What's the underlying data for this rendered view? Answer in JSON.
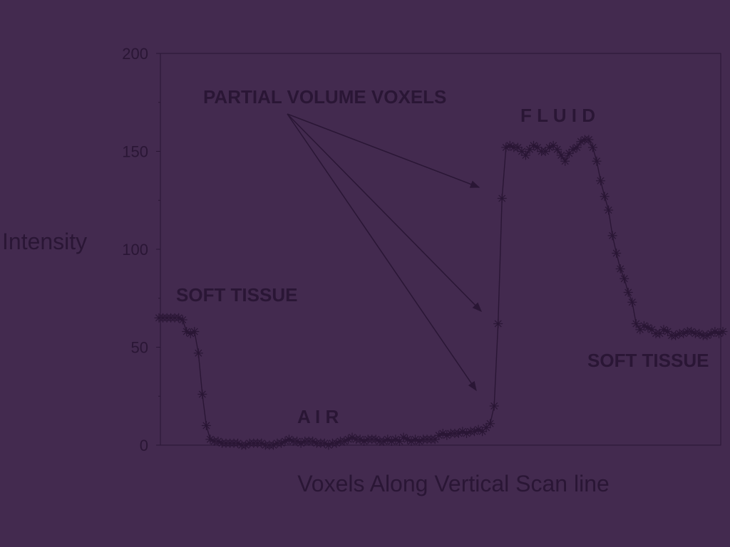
{
  "colors": {
    "background": "#432A4F",
    "ink": "#2A1635"
  },
  "chart_data": {
    "type": "line",
    "marker": "star",
    "xlabel": "Voxels Along Vertical Scan line",
    "ylabel": "Intensity",
    "ylim": [
      0,
      200
    ],
    "yticks": [
      "0",
      "50",
      "100",
      "150",
      "200"
    ],
    "grid": false,
    "legend": "none",
    "x_start": 0,
    "series": [
      {
        "values": [
          65,
          65,
          65,
          65,
          65,
          65,
          64,
          58,
          57,
          58,
          47,
          26,
          10,
          3,
          2,
          2,
          1,
          1,
          1,
          1,
          1,
          0,
          0,
          1,
          1,
          1,
          1,
          0,
          0,
          0,
          1,
          1,
          2,
          3,
          2,
          2,
          1,
          2,
          2,
          2,
          1,
          1,
          1,
          0,
          1,
          1,
          2,
          2,
          3,
          4,
          3,
          3,
          2,
          3,
          3,
          3,
          2,
          2,
          3,
          2,
          3,
          2,
          4,
          3,
          2,
          3,
          2,
          3,
          3,
          3,
          3,
          5,
          6,
          5,
          6,
          6,
          6,
          7,
          6,
          7,
          7,
          8,
          7,
          9,
          11,
          20,
          62,
          126,
          152,
          153,
          152,
          152,
          150,
          148,
          151,
          153,
          152,
          150,
          150,
          152,
          153,
          151,
          148,
          145,
          149,
          151,
          152,
          155,
          156,
          156,
          152,
          145,
          135,
          127,
          120,
          107,
          98,
          90,
          85,
          78,
          73,
          62,
          59,
          61,
          60,
          59,
          57,
          57,
          59,
          58,
          56,
          56,
          57,
          57,
          58,
          58,
          57,
          57,
          56,
          56,
          57,
          58,
          57,
          58
        ]
      }
    ],
    "annotations": [
      {
        "text": "PARTIAL VOLUME VOXELS"
      },
      {
        "text": "F L U I D"
      },
      {
        "text": "SOFT TISSUE"
      },
      {
        "text": "A I R"
      },
      {
        "text": "SOFT TISSUE"
      }
    ]
  }
}
